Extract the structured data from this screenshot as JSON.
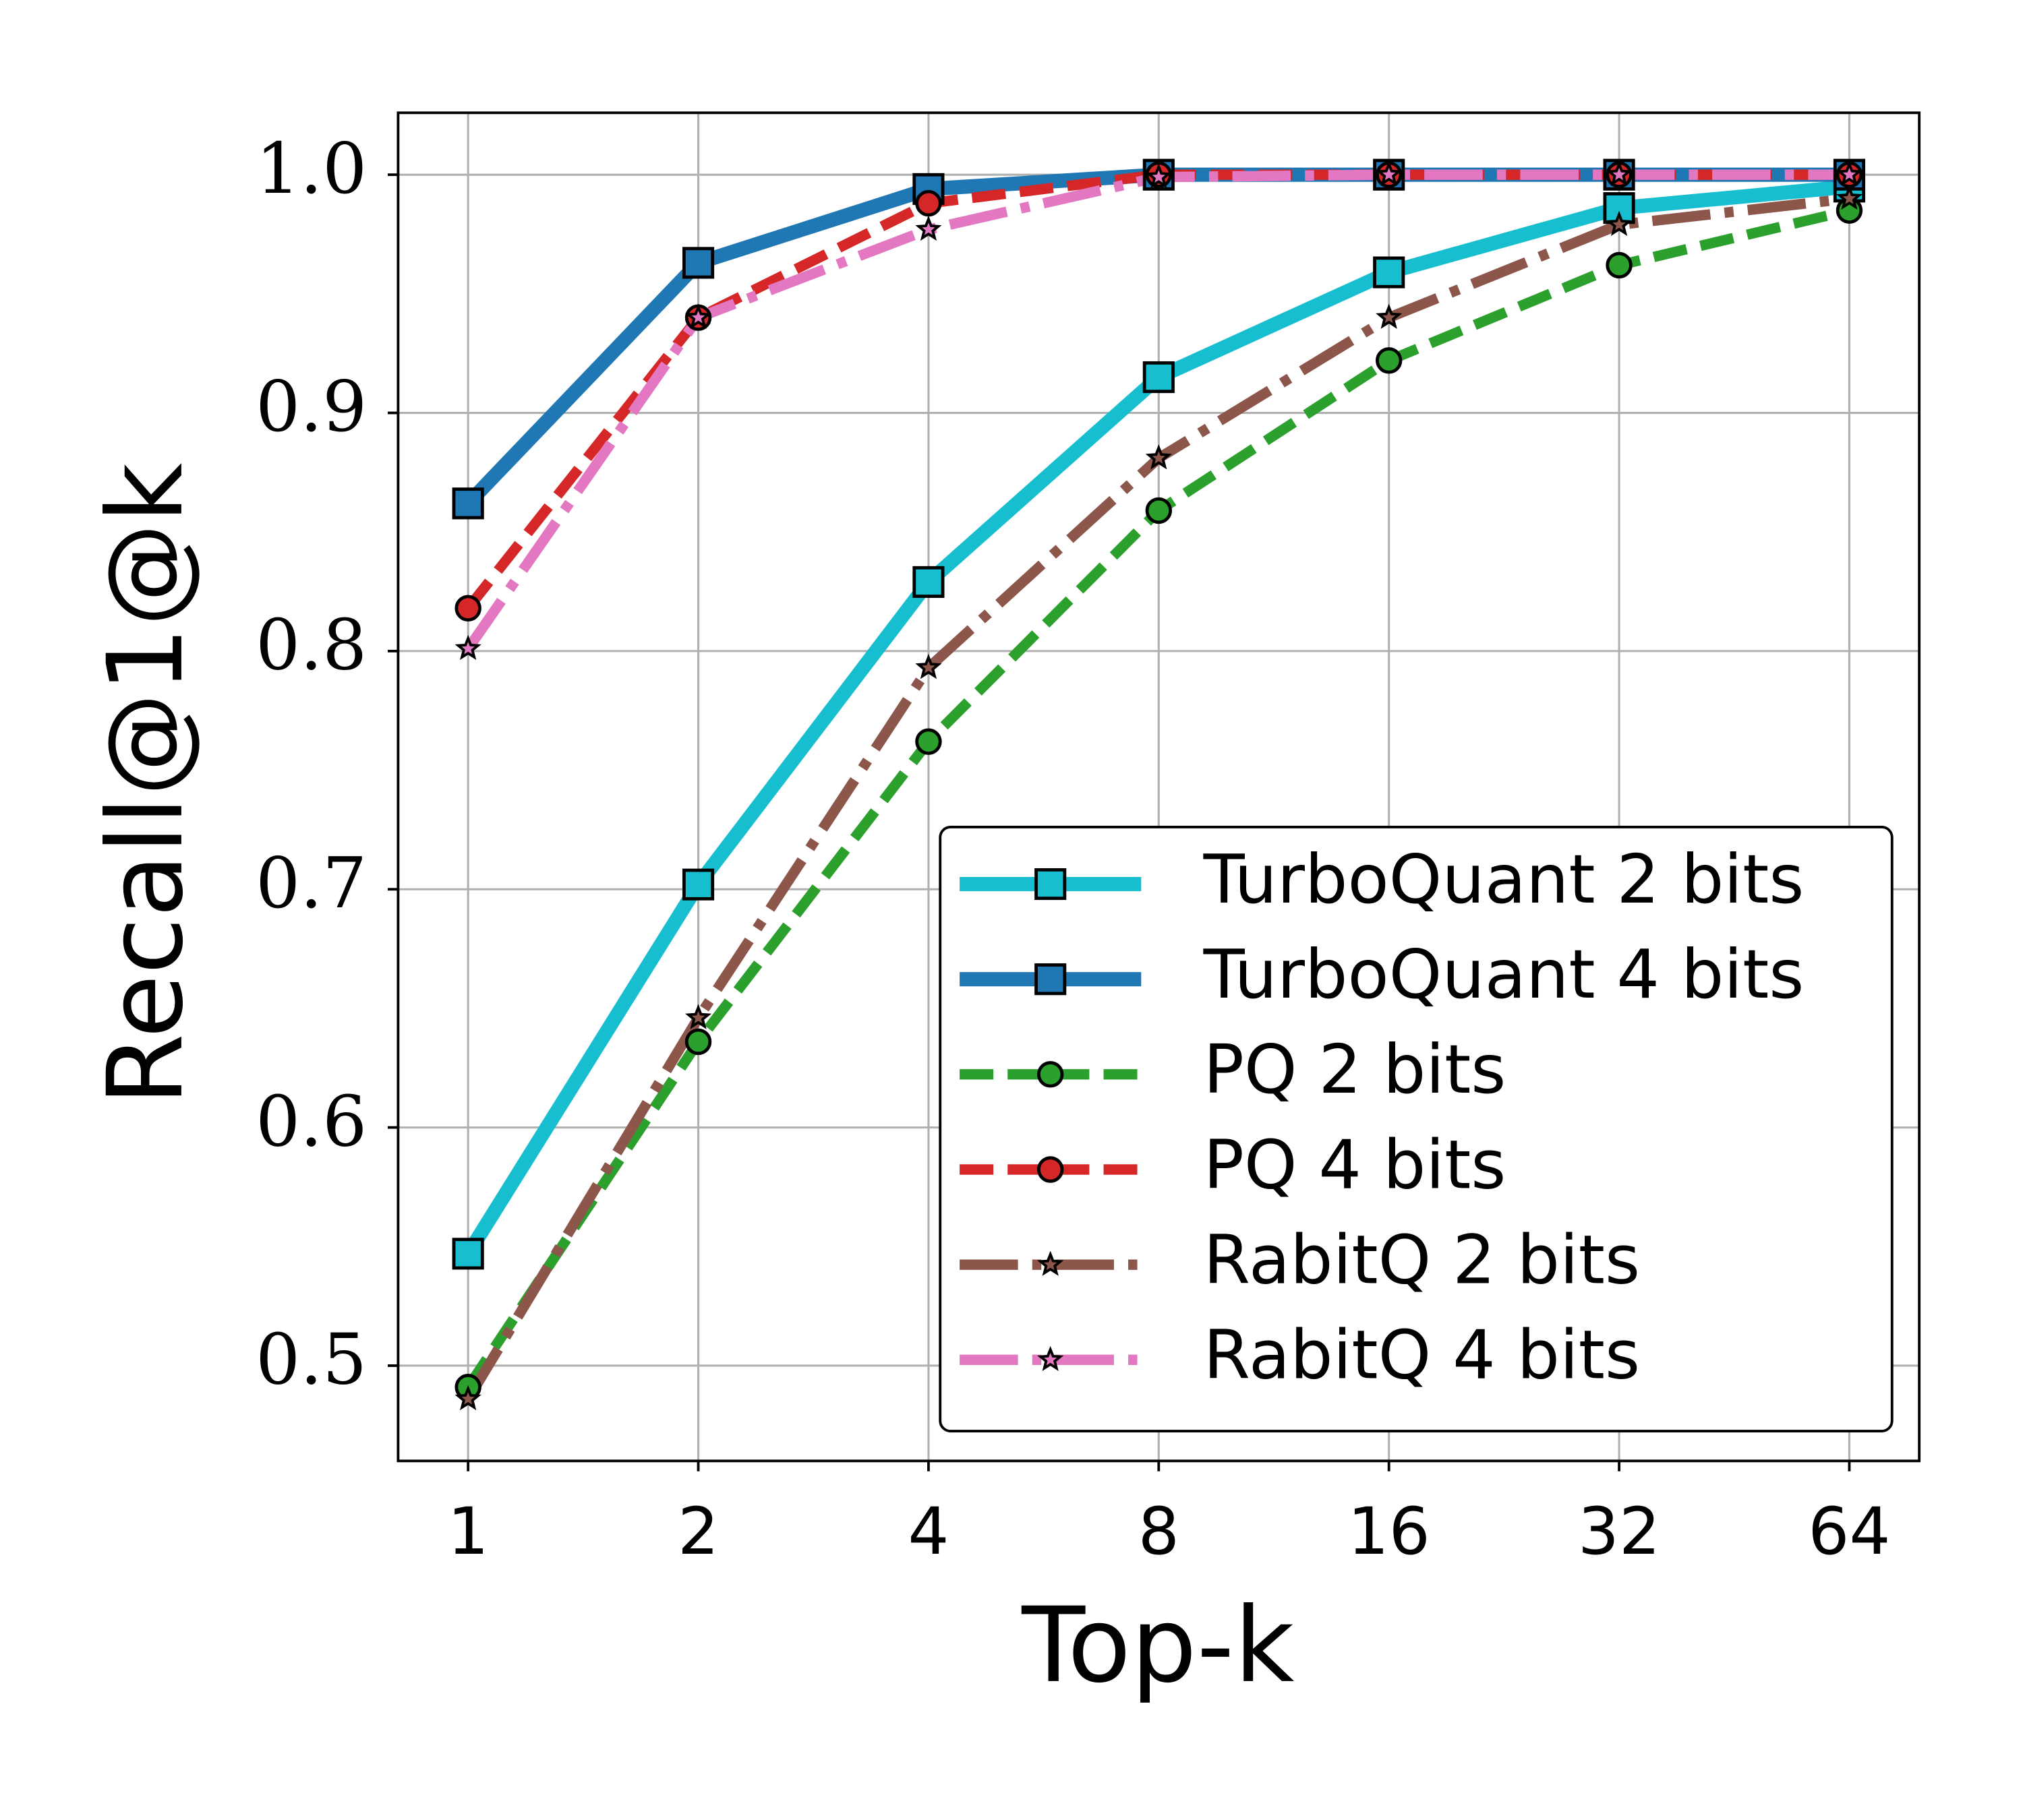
{
  "chart_data": {
    "type": "line",
    "x_label": "Top-k",
    "y_label": "Recall@1@k",
    "x": [
      1,
      2,
      4,
      8,
      16,
      32,
      64
    ],
    "log_x": true,
    "log_base": 2,
    "grid": true,
    "legend": "lower right",
    "xlim": [
      0.81,
      79
    ],
    "xticks": [
      1,
      2,
      4,
      8,
      16,
      32,
      64
    ],
    "ylim": [
      0.46,
      1.026
    ],
    "yticks": [
      {
        "value": 0.5,
        "label": "0.5"
      },
      {
        "value": 0.6,
        "label": "0.6"
      },
      {
        "value": 0.7,
        "label": "0.7"
      },
      {
        "value": 0.8,
        "label": "0.8"
      },
      {
        "value": 0.9,
        "label": "0.9"
      },
      {
        "value": 1,
        "label": "1.0"
      }
    ],
    "series": [
      {
        "name": "TurboQuant 2 bits",
        "color": "#17becf",
        "marker": "square",
        "linestyle": "solid",
        "values": [
          0.547,
          0.702,
          0.829,
          0.915,
          0.959,
          0.986,
          0.995
        ]
      },
      {
        "name": "TurboQuant 4 bits",
        "color": "#1f77b4",
        "marker": "square",
        "linestyle": "solid",
        "values": [
          0.862,
          0.963,
          0.994,
          1.0,
          1.0,
          1.0,
          1.0
        ]
      },
      {
        "name": "PQ 2 bits",
        "color": "#2ca02c",
        "marker": "circle",
        "linestyle": "dashed",
        "values": [
          0.491,
          0.636,
          0.762,
          0.859,
          0.922,
          0.962,
          0.985
        ]
      },
      {
        "name": "PQ 4 bits",
        "color": "#d62728",
        "marker": "circle",
        "linestyle": "dashed",
        "values": [
          0.818,
          0.94,
          0.988,
          1.0,
          1.0,
          1.0,
          1.0
        ]
      },
      {
        "name": "RabitQ 2 bits",
        "color": "#8c564b",
        "marker": "star",
        "linestyle": "dashdot",
        "values": [
          0.486,
          0.646,
          0.793,
          0.881,
          0.94,
          0.979,
          0.99
        ]
      },
      {
        "name": "RabitQ 4 bits",
        "color": "#e377c2",
        "marker": "star",
        "linestyle": "dashdot",
        "values": [
          0.801,
          0.94,
          0.977,
          0.999,
          1.0,
          1.0,
          1.0
        ]
      }
    ]
  }
}
